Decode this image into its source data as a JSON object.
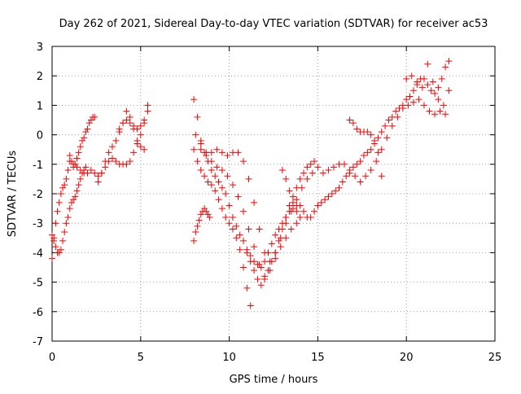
{
  "chart_data": {
    "type": "scatter",
    "title": "Day 262 of 2021, Sidereal Day-to-day VTEC variation (SDTVAR) for receiver ac53",
    "xlabel": "GPS time / hours",
    "ylabel": "SDTVAR / TECUs",
    "xlim": [
      0,
      25
    ],
    "ylim": [
      -7,
      3
    ],
    "xticks": [
      0,
      5,
      10,
      15,
      20,
      25
    ],
    "yticks": [
      -7,
      -6,
      -5,
      -4,
      -3,
      -2,
      -1,
      0,
      1,
      2,
      3
    ],
    "grid": true,
    "legend": "none",
    "marker": "+",
    "color": "#ff0000",
    "series": [
      {
        "x": [
          0.0,
          0.1,
          0.2,
          0.3,
          0.4,
          0.5,
          0.6,
          0.7,
          0.8,
          0.9,
          1.0,
          1.1,
          1.2,
          1.3,
          1.4,
          1.5,
          1.6,
          1.7,
          1.8,
          1.9,
          2.0,
          2.1,
          2.2,
          2.3,
          2.4
        ],
        "y": [
          -4.2,
          -3.5,
          -3.0,
          -2.6,
          -2.3,
          -2.0,
          -1.8,
          -1.7,
          -1.5,
          -1.2,
          -0.7,
          -0.9,
          -1.1,
          -1.0,
          -0.8,
          -0.6,
          -0.4,
          -0.2,
          -0.1,
          0.1,
          0.2,
          0.4,
          0.5,
          0.6,
          0.6
        ]
      },
      {
        "x": [
          0.0,
          0.1,
          0.2,
          0.3,
          0.4,
          0.5,
          0.6,
          0.7,
          0.8,
          0.9,
          1.0,
          1.1,
          1.2,
          1.3,
          1.4,
          1.5,
          1.6,
          1.7,
          1.8,
          1.9
        ],
        "y": [
          -3.4,
          -3.6,
          -3.8,
          -4.0,
          -4.0,
          -3.9,
          -3.6,
          -3.3,
          -3.0,
          -2.8,
          -2.5,
          -2.3,
          -2.2,
          -2.1,
          -1.9,
          -1.7,
          -1.5,
          -1.3,
          -1.2,
          -1.1
        ]
      },
      {
        "x": [
          1.0,
          1.2,
          1.4,
          1.6,
          1.8,
          2.0,
          2.2,
          2.4,
          2.6,
          2.8,
          3.0,
          3.2,
          3.4,
          3.6,
          3.8,
          4.0,
          4.2,
          4.4,
          4.6,
          4.8,
          5.0,
          5.2,
          5.4
        ],
        "y": [
          -0.9,
          -1.0,
          -1.1,
          -1.2,
          -1.3,
          -1.3,
          -1.2,
          -1.3,
          -1.4,
          -1.3,
          -1.1,
          -0.9,
          -0.8,
          -0.9,
          -1.0,
          -1.0,
          -1.0,
          -0.9,
          -0.6,
          -0.3,
          0.0,
          0.4,
          0.8
        ]
      },
      {
        "x": [
          2.6,
          2.8,
          3.0,
          3.2,
          3.4,
          3.6,
          3.8,
          4.0,
          4.2,
          4.4,
          4.6,
          4.8,
          5.0,
          5.2
        ],
        "y": [
          -1.6,
          -1.3,
          -0.9,
          -0.6,
          -0.4,
          -0.2,
          0.1,
          0.4,
          0.8,
          0.6,
          0.2,
          -0.2,
          -0.4,
          -0.5
        ]
      },
      {
        "x": [
          3.8,
          4.0,
          4.2,
          4.4,
          4.6,
          4.8,
          5.0,
          5.2,
          5.4
        ],
        "y": [
          0.2,
          0.4,
          0.5,
          0.4,
          0.3,
          0.2,
          0.3,
          0.5,
          1.0
        ]
      },
      {
        "x": [
          8.0,
          8.1,
          8.2,
          8.3,
          8.4,
          8.5,
          8.6,
          8.7,
          8.8,
          8.9
        ],
        "y": [
          -3.6,
          -3.3,
          -3.1,
          -2.9,
          -2.7,
          -2.6,
          -2.5,
          -2.6,
          -2.7,
          -2.8
        ]
      },
      {
        "x": [
          8.0,
          8.2,
          8.4,
          8.6,
          8.8,
          9.0,
          9.2,
          9.4,
          9.6,
          9.8,
          10.0,
          10.2,
          10.4,
          10.6,
          10.8,
          11.0,
          11.2,
          11.4,
          11.6,
          11.8,
          12.0,
          12.2,
          12.4,
          12.6,
          12.8,
          13.0,
          13.2,
          13.4,
          13.6,
          13.8,
          14.0,
          14.2,
          14.4,
          14.6,
          14.8,
          15.0
        ],
        "y": [
          1.2,
          0.6,
          -0.2,
          -0.6,
          -0.9,
          -1.2,
          -1.4,
          -1.6,
          -1.8,
          -2.0,
          -2.4,
          -2.8,
          -3.1,
          -3.4,
          -3.6,
          -3.9,
          -4.1,
          -4.3,
          -4.4,
          -4.5,
          -4.3,
          -4.0,
          -3.7,
          -3.4,
          -3.2,
          -3.0,
          -2.8,
          -2.6,
          -2.5,
          -2.4,
          -2.4,
          -2.6,
          -2.8,
          -2.8,
          -2.6,
          -2.4
        ]
      },
      {
        "x": [
          8.0,
          8.2,
          8.4,
          8.6,
          8.8,
          9.0,
          9.2,
          9.4,
          9.6,
          9.8,
          10.0,
          10.2,
          10.4,
          10.6,
          10.8,
          11.0,
          11.2
        ],
        "y": [
          -0.5,
          -0.9,
          -1.2,
          -1.4,
          -1.6,
          -1.7,
          -1.9,
          -2.2,
          -2.5,
          -2.8,
          -3.0,
          -3.2,
          -3.5,
          -3.9,
          -4.5,
          -5.2,
          -5.8
        ]
      },
      {
        "x": [
          8.1,
          8.4,
          8.7,
          9.0,
          9.3,
          9.6,
          9.9,
          10.2,
          10.5,
          10.8,
          11.1,
          11.4,
          11.7,
          12.0,
          12.3,
          12.6,
          12.9,
          13.2,
          13.5,
          13.8
        ],
        "y": [
          0.0,
          -0.3,
          -0.6,
          -0.9,
          -1.1,
          -1.2,
          -1.4,
          -1.7,
          -2.1,
          -2.6,
          -3.2,
          -3.8,
          -4.4,
          -4.8,
          -4.6,
          -4.2,
          -3.8,
          -3.5,
          -3.2,
          -3.0
        ]
      },
      {
        "x": [
          8.4,
          8.7,
          9.0,
          9.3,
          9.6,
          9.9,
          10.2,
          10.5,
          10.8,
          11.1,
          11.4,
          11.7,
          12.0,
          12.3,
          12.6,
          12.9,
          13.2,
          13.5,
          13.8,
          14.1,
          14.4,
          14.7
        ],
        "y": [
          -0.5,
          -0.7,
          -0.6,
          -0.5,
          -0.6,
          -0.7,
          -0.6,
          -0.6,
          -0.9,
          -1.5,
          -2.3,
          -3.2,
          -4.0,
          -4.3,
          -4.0,
          -3.5,
          -3.0,
          -2.6,
          -2.2,
          -1.8,
          -1.5,
          -1.3
        ]
      },
      {
        "x": [
          11.0,
          11.2,
          11.4,
          11.6,
          11.8,
          12.0,
          12.2,
          12.4,
          12.6,
          12.8,
          13.0,
          13.2,
          13.4,
          13.6,
          13.8,
          14.0,
          14.2,
          14.4,
          14.6,
          14.8
        ],
        "y": [
          -4.0,
          -4.3,
          -4.6,
          -4.9,
          -5.1,
          -4.9,
          -4.6,
          -4.3,
          -4.0,
          -3.6,
          -3.2,
          -2.8,
          -2.4,
          -2.1,
          -1.8,
          -1.5,
          -1.3,
          -1.1,
          -1.0,
          -0.9
        ]
      },
      {
        "x": [
          13.0,
          13.2,
          13.4,
          13.6,
          13.8,
          14.0
        ],
        "y": [
          -1.2,
          -1.5,
          -1.9,
          -2.3,
          -2.6,
          -2.8
        ]
      },
      {
        "x": [
          15.0,
          15.2,
          15.4,
          15.6,
          15.8,
          16.0,
          16.2,
          16.4,
          16.6,
          16.8,
          17.0,
          17.2,
          17.4,
          17.6,
          17.8,
          18.0,
          18.2,
          18.4,
          18.6,
          18.8,
          19.0,
          19.2,
          19.4,
          19.6,
          19.8,
          20.0,
          20.2,
          20.4,
          20.6,
          20.8,
          21.0,
          21.2,
          21.4,
          21.6,
          21.8,
          22.0,
          22.2,
          22.4
        ],
        "y": [
          -2.4,
          -2.3,
          -2.2,
          -2.1,
          -2.0,
          -1.9,
          -1.8,
          -1.6,
          -1.4,
          -1.3,
          -1.1,
          -1.0,
          -0.9,
          -0.7,
          -0.6,
          -0.5,
          -0.3,
          -0.1,
          0.1,
          0.3,
          0.5,
          0.6,
          0.8,
          0.9,
          1.0,
          1.2,
          1.3,
          1.5,
          1.7,
          1.9,
          1.9,
          1.7,
          1.5,
          1.4,
          1.6,
          1.9,
          2.3,
          2.5
        ]
      },
      {
        "x": [
          15.0,
          15.3,
          15.6,
          15.9,
          16.2,
          16.5,
          16.8,
          17.1,
          17.4,
          17.7,
          18.0,
          18.3,
          18.6,
          18.9,
          19.2,
          19.5,
          19.8,
          20.1,
          20.4,
          20.7,
          21.0,
          21.3,
          21.6,
          21.9,
          22.2
        ],
        "y": [
          -1.1,
          -1.3,
          -1.2,
          -1.1,
          -1.0,
          -1.0,
          -1.2,
          -1.4,
          -1.6,
          -1.4,
          -1.2,
          -0.9,
          -0.5,
          -0.1,
          0.3,
          0.6,
          0.9,
          1.0,
          1.1,
          1.2,
          1.0,
          0.8,
          0.7,
          0.8,
          0.7
        ]
      },
      {
        "x": [
          16.8,
          17.0,
          17.2,
          17.4,
          17.6,
          17.8,
          18.0,
          18.2,
          18.4,
          18.6
        ],
        "y": [
          0.5,
          0.4,
          0.2,
          0.1,
          0.1,
          0.1,
          0.0,
          -0.2,
          -0.6,
          -1.4
        ]
      },
      {
        "x": [
          20.0,
          20.3,
          20.6,
          20.9,
          21.2,
          21.5,
          21.8,
          22.1,
          22.4
        ],
        "y": [
          1.9,
          2.0,
          1.8,
          1.6,
          2.4,
          1.8,
          1.2,
          1.0,
          1.5
        ]
      }
    ]
  }
}
